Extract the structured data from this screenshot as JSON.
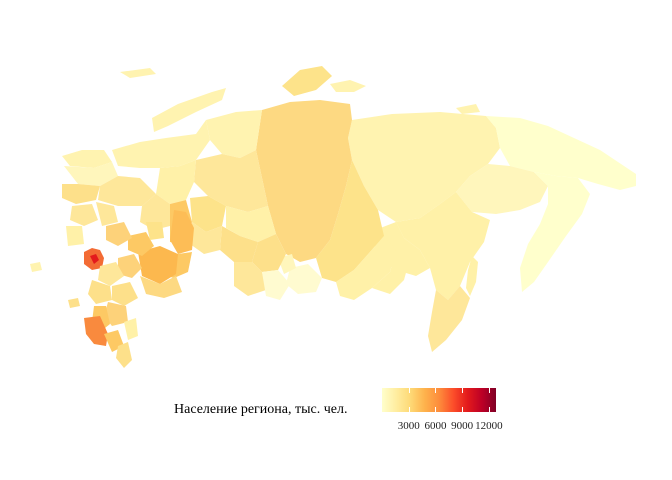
{
  "legend": {
    "title": "Население региона, тыс. чел.",
    "ticks": [
      "3000",
      "6000",
      "9000",
      "12000"
    ],
    "tick_values": [
      3000,
      6000,
      9000,
      12000
    ],
    "range": [
      0,
      12800
    ],
    "colors": [
      "#ffffcc",
      "#ffeda0",
      "#fed976",
      "#feb24c",
      "#fd8d3c",
      "#fc4e2a",
      "#e31a1c",
      "#bd0026",
      "#800026"
    ]
  }
}
